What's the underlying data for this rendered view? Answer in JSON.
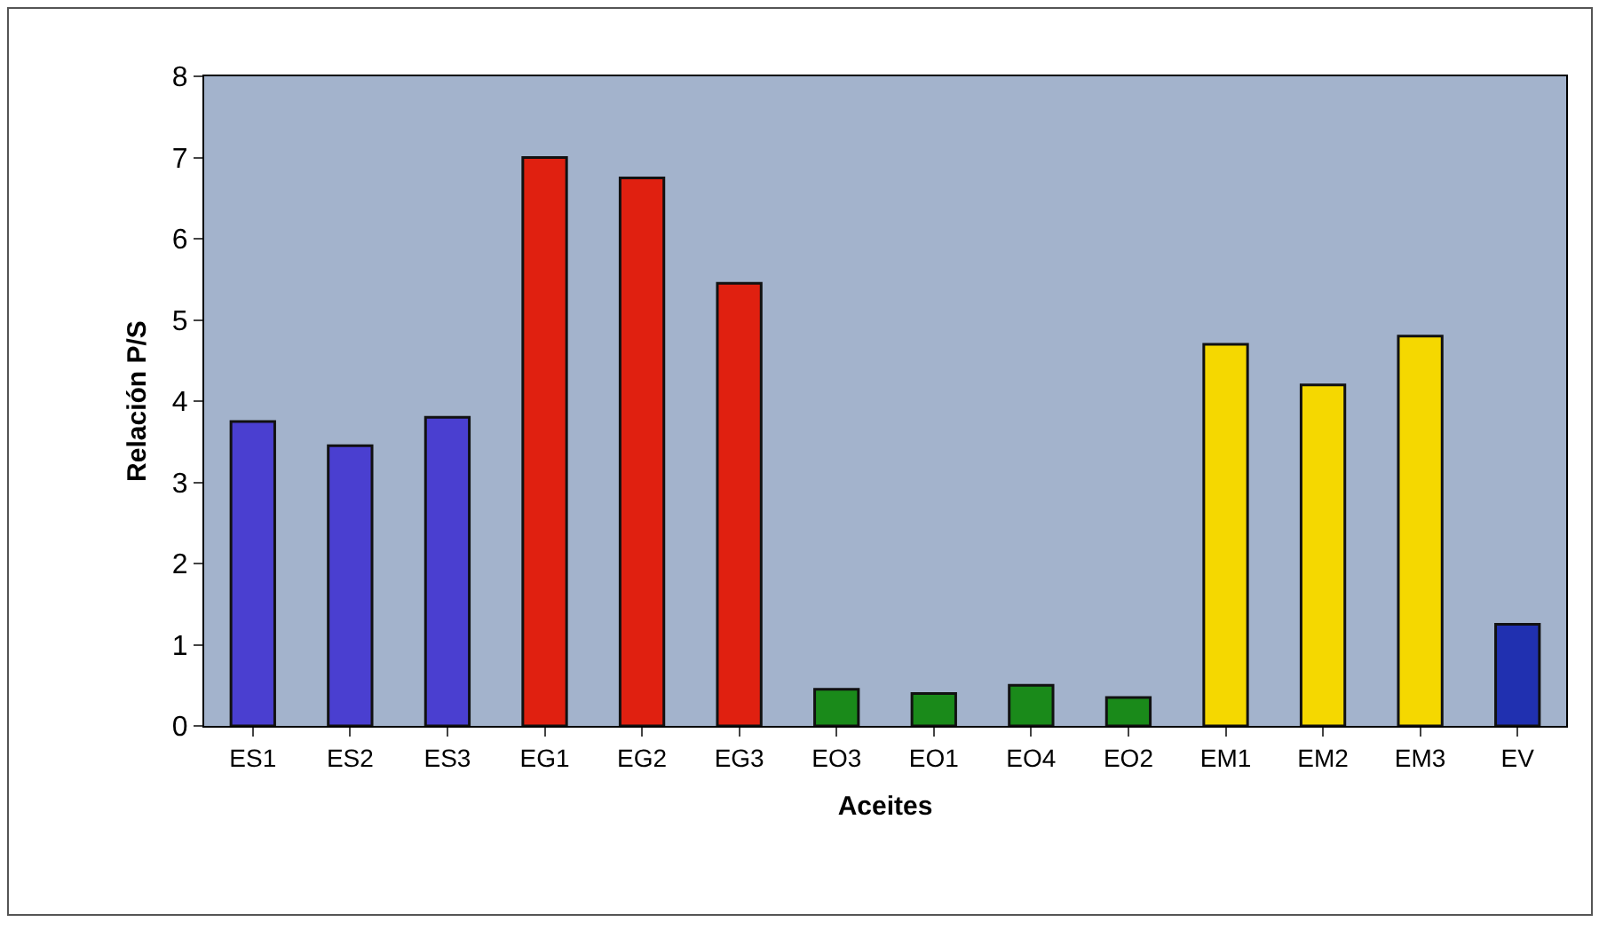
{
  "chart_data": {
    "type": "bar",
    "xlabel": "Aceites",
    "ylabel": "Relación P/S",
    "categories": [
      "ES1",
      "ES2",
      "ES3",
      "EG1",
      "EG2",
      "EG3",
      "EO3",
      "EO1",
      "EO4",
      "EO2",
      "EM1",
      "EM2",
      "EM3",
      "EV"
    ],
    "values": [
      3.75,
      3.45,
      3.8,
      7.0,
      6.75,
      5.45,
      0.45,
      0.4,
      0.5,
      0.35,
      4.7,
      4.2,
      4.8,
      1.25
    ],
    "colors": [
      "#4a3fd0",
      "#4a3fd0",
      "#4a3fd0",
      "#e02010",
      "#e02010",
      "#e02010",
      "#1a8a1a",
      "#1a8a1a",
      "#1a8a1a",
      "#1a8a1a",
      "#f5d800",
      "#f5d800",
      "#f5d800",
      "#2030b0"
    ],
    "ylim": [
      0,
      8
    ],
    "yticks": [
      0,
      1,
      2,
      3,
      4,
      5,
      6,
      7,
      8
    ],
    "grid": false,
    "legend": false
  }
}
